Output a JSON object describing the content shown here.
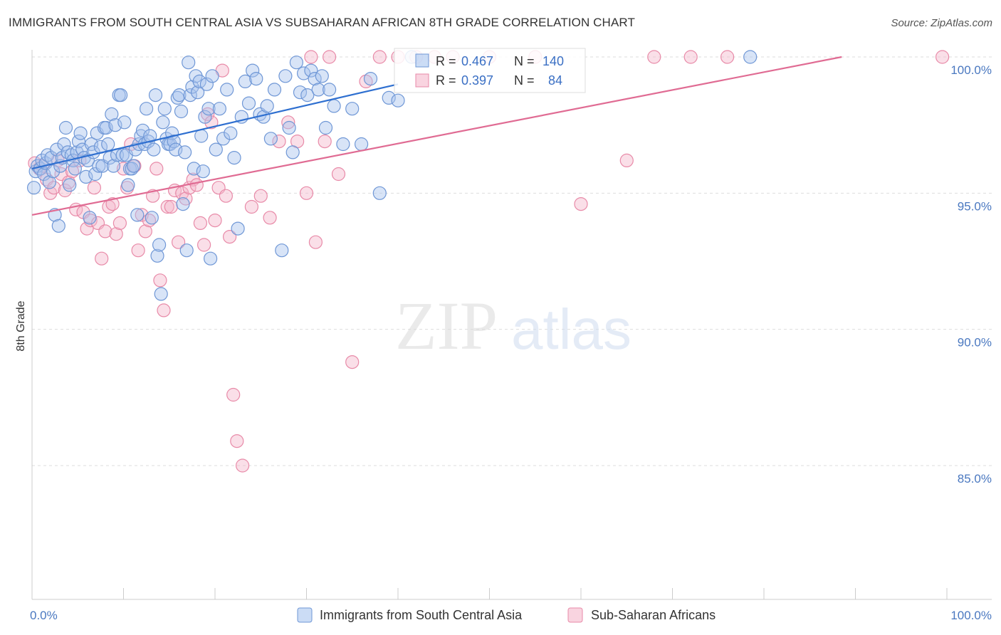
{
  "header": {
    "title": "IMMIGRANTS FROM SOUTH CENTRAL ASIA VS SUBSAHARAN AFRICAN 8TH GRADE CORRELATION CHART",
    "source": "Source: ZipAtlas.com"
  },
  "watermark": {
    "zip": "ZIP",
    "atlas": "atlas"
  },
  "colors": {
    "blue_fill": "#a9c4ee",
    "blue_stroke": "#6f97d6",
    "blue_line": "#2e6fd0",
    "pink_fill": "#f5b8cb",
    "pink_stroke": "#e88aa8",
    "pink_line": "#e06b93",
    "grid": "#dddddd",
    "tick_text": "#4a78c0"
  },
  "legend": {
    "rows": [
      {
        "r_label": "R =",
        "r_value": "0.467",
        "n_label": "N =",
        "n_value": "140"
      },
      {
        "r_label": "R =",
        "r_value": "0.397",
        "n_label": "N =",
        "n_value": "84"
      }
    ]
  },
  "chart_data": {
    "type": "scatter",
    "title": "IMMIGRANTS FROM SOUTH CENTRAL ASIA VS SUBSAHARAN AFRICAN 8TH GRADE CORRELATION CHART",
    "xlabel": "",
    "ylabel": "8th Grade",
    "xlim": [
      0,
      100
    ],
    "ylim": [
      80.5,
      100.5
    ],
    "x_tick_labels": [
      "0.0%",
      "100.0%"
    ],
    "y_ticks": [
      100,
      95,
      90,
      85
    ],
    "y_tick_labels": [
      "100.0%",
      "95.0%",
      "90.0%",
      "85.0%"
    ],
    "grid": "horizontal dashed",
    "legend_position": "top-center",
    "series": [
      {
        "name": "Immigrants from South Central Asia",
        "R": 0.467,
        "N": 140,
        "trend": {
          "x": [
            0,
            40
          ],
          "y": [
            95.9,
            99.0
          ]
        },
        "points": [
          [
            0.2,
            95.2
          ],
          [
            0.4,
            95.8
          ],
          [
            0.6,
            96.0
          ],
          [
            0.9,
            95.9
          ],
          [
            1.1,
            96.2
          ],
          [
            1.3,
            95.7
          ],
          [
            1.5,
            96.1
          ],
          [
            1.7,
            96.4
          ],
          [
            1.9,
            95.4
          ],
          [
            2.1,
            96.3
          ],
          [
            2.3,
            95.8
          ],
          [
            2.5,
            94.2
          ],
          [
            2.7,
            96.6
          ],
          [
            2.9,
            93.8
          ],
          [
            3.1,
            96.0
          ],
          [
            3.3,
            96.3
          ],
          [
            3.5,
            96.8
          ],
          [
            3.7,
            97.4
          ],
          [
            3.9,
            96.5
          ],
          [
            4.1,
            95.3
          ],
          [
            4.3,
            96.4
          ],
          [
            4.5,
            96.2
          ],
          [
            4.7,
            95.9
          ],
          [
            4.9,
            96.5
          ],
          [
            5.1,
            96.9
          ],
          [
            5.3,
            97.2
          ],
          [
            5.5,
            96.6
          ],
          [
            5.7,
            96.3
          ],
          [
            5.9,
            95.6
          ],
          [
            6.1,
            96.2
          ],
          [
            6.3,
            94.1
          ],
          [
            6.5,
            96.8
          ],
          [
            6.7,
            96.5
          ],
          [
            6.9,
            95.7
          ],
          [
            7.1,
            97.2
          ],
          [
            7.3,
            96.0
          ],
          [
            7.5,
            96.7
          ],
          [
            7.7,
            96.0
          ],
          [
            7.9,
            97.4
          ],
          [
            8.1,
            97.4
          ],
          [
            8.3,
            96.8
          ],
          [
            8.5,
            96.3
          ],
          [
            8.7,
            97.9
          ],
          [
            8.9,
            96.0
          ],
          [
            9.1,
            97.5
          ],
          [
            9.3,
            96.4
          ],
          [
            9.5,
            98.6
          ],
          [
            9.7,
            98.6
          ],
          [
            9.9,
            96.4
          ],
          [
            10.1,
            97.6
          ],
          [
            10.3,
            96.4
          ],
          [
            10.5,
            95.3
          ],
          [
            10.7,
            95.9
          ],
          [
            10.9,
            95.9
          ],
          [
            11.1,
            96.0
          ],
          [
            11.3,
            96.6
          ],
          [
            11.5,
            94.2
          ],
          [
            11.7,
            96.8
          ],
          [
            11.9,
            97.1
          ],
          [
            12.1,
            97.3
          ],
          [
            12.3,
            96.8
          ],
          [
            12.5,
            98.1
          ],
          [
            12.7,
            96.9
          ],
          [
            12.9,
            97.1
          ],
          [
            13.1,
            94.1
          ],
          [
            13.3,
            96.6
          ],
          [
            13.5,
            98.6
          ],
          [
            13.7,
            92.7
          ],
          [
            13.9,
            93.1
          ],
          [
            14.1,
            91.3
          ],
          [
            14.3,
            97.6
          ],
          [
            14.5,
            98.1
          ],
          [
            14.7,
            97.0
          ],
          [
            14.9,
            96.8
          ],
          [
            15.1,
            96.8
          ],
          [
            15.3,
            97.2
          ],
          [
            15.5,
            96.9
          ],
          [
            15.7,
            96.6
          ],
          [
            15.9,
            98.5
          ],
          [
            16.1,
            98.6
          ],
          [
            16.3,
            98.0
          ],
          [
            16.5,
            94.6
          ],
          [
            16.7,
            96.5
          ],
          [
            16.9,
            92.9
          ],
          [
            17.1,
            99.8
          ],
          [
            17.3,
            98.6
          ],
          [
            17.5,
            98.9
          ],
          [
            17.7,
            95.9
          ],
          [
            17.9,
            99.3
          ],
          [
            18.1,
            98.7
          ],
          [
            18.3,
            99.1
          ],
          [
            18.5,
            97.1
          ],
          [
            18.7,
            95.8
          ],
          [
            18.9,
            97.8
          ],
          [
            19.1,
            99.0
          ],
          [
            19.3,
            98.1
          ],
          [
            19.5,
            92.6
          ],
          [
            19.7,
            99.3
          ],
          [
            20.1,
            96.6
          ],
          [
            20.5,
            98.1
          ],
          [
            20.9,
            97.0
          ],
          [
            21.3,
            98.8
          ],
          [
            21.7,
            97.2
          ],
          [
            22.1,
            96.3
          ],
          [
            22.5,
            93.7
          ],
          [
            22.9,
            97.8
          ],
          [
            23.3,
            99.1
          ],
          [
            23.7,
            98.3
          ],
          [
            24.1,
            99.5
          ],
          [
            24.5,
            99.2
          ],
          [
            24.9,
            97.9
          ],
          [
            25.3,
            97.8
          ],
          [
            25.7,
            98.2
          ],
          [
            26.1,
            97.0
          ],
          [
            26.5,
            98.8
          ],
          [
            27.3,
            92.9
          ],
          [
            27.7,
            99.3
          ],
          [
            28.1,
            97.4
          ],
          [
            28.5,
            96.5
          ],
          [
            28.9,
            99.8
          ],
          [
            29.3,
            98.7
          ],
          [
            29.7,
            99.4
          ],
          [
            30.1,
            98.6
          ],
          [
            30.5,
            99.5
          ],
          [
            30.9,
            99.2
          ],
          [
            31.3,
            98.8
          ],
          [
            31.7,
            99.3
          ],
          [
            32.1,
            97.4
          ],
          [
            32.5,
            98.8
          ],
          [
            33.0,
            98.2
          ],
          [
            34.0,
            96.8
          ],
          [
            35.0,
            98.1
          ],
          [
            36.0,
            96.8
          ],
          [
            37.0,
            99.2
          ],
          [
            38.0,
            95.0
          ],
          [
            39.0,
            98.5
          ],
          [
            40.0,
            98.4
          ],
          [
            78.5,
            100.0
          ],
          [
            41.5,
            100.0
          ]
        ]
      },
      {
        "name": "Sub-Saharan Africans",
        "R": 0.397,
        "N": 84,
        "trend": {
          "x": [
            0,
            88.5
          ],
          "y": [
            94.2,
            100.0
          ]
        },
        "points": [
          [
            0.3,
            96.1
          ],
          [
            0.8,
            95.9
          ],
          [
            1.2,
            96.0
          ],
          [
            1.6,
            95.5
          ],
          [
            2.0,
            95.0
          ],
          [
            2.4,
            95.2
          ],
          [
            2.8,
            96.2
          ],
          [
            3.2,
            95.7
          ],
          [
            3.6,
            95.1
          ],
          [
            4.0,
            95.4
          ],
          [
            4.4,
            95.8
          ],
          [
            4.8,
            94.4
          ],
          [
            5.2,
            96.2
          ],
          [
            5.6,
            94.3
          ],
          [
            6.0,
            93.7
          ],
          [
            6.4,
            94.0
          ],
          [
            6.8,
            95.2
          ],
          [
            7.2,
            93.9
          ],
          [
            7.6,
            92.6
          ],
          [
            8.0,
            93.6
          ],
          [
            8.4,
            94.5
          ],
          [
            8.8,
            94.6
          ],
          [
            9.2,
            93.5
          ],
          [
            9.6,
            93.9
          ],
          [
            10.0,
            95.9
          ],
          [
            10.4,
            95.2
          ],
          [
            10.8,
            96.8
          ],
          [
            11.2,
            96.0
          ],
          [
            11.6,
            92.9
          ],
          [
            12.0,
            94.2
          ],
          [
            12.4,
            93.6
          ],
          [
            12.8,
            94.0
          ],
          [
            13.2,
            94.9
          ],
          [
            13.6,
            95.9
          ],
          [
            14.0,
            91.8
          ],
          [
            14.4,
            90.7
          ],
          [
            14.8,
            94.5
          ],
          [
            15.2,
            94.5
          ],
          [
            15.6,
            95.1
          ],
          [
            16.0,
            93.2
          ],
          [
            16.4,
            95.0
          ],
          [
            16.8,
            94.8
          ],
          [
            17.2,
            95.2
          ],
          [
            17.6,
            95.5
          ],
          [
            18.0,
            95.3
          ],
          [
            18.4,
            93.9
          ],
          [
            18.8,
            93.1
          ],
          [
            19.2,
            97.9
          ],
          [
            19.6,
            97.6
          ],
          [
            20.0,
            94.0
          ],
          [
            20.4,
            95.2
          ],
          [
            20.8,
            99.5
          ],
          [
            21.2,
            94.9
          ],
          [
            21.6,
            93.4
          ],
          [
            22.0,
            87.6
          ],
          [
            22.4,
            85.9
          ],
          [
            23.0,
            85.0
          ],
          [
            24.0,
            94.5
          ],
          [
            25.0,
            94.9
          ],
          [
            26.0,
            94.1
          ],
          [
            27.0,
            96.9
          ],
          [
            28.0,
            97.6
          ],
          [
            29.0,
            96.9
          ],
          [
            30.0,
            95.0
          ],
          [
            31.0,
            93.2
          ],
          [
            32.0,
            96.9
          ],
          [
            33.5,
            95.7
          ],
          [
            35.0,
            88.8
          ],
          [
            36.5,
            99.1
          ],
          [
            38.0,
            100.0
          ],
          [
            40.0,
            100.0
          ],
          [
            42.0,
            100.0
          ],
          [
            44.0,
            100.0
          ],
          [
            46.0,
            100.0
          ],
          [
            50.0,
            100.0
          ],
          [
            55.0,
            100.0
          ],
          [
            60.0,
            94.6
          ],
          [
            65.0,
            96.2
          ],
          [
            68.0,
            100.0
          ],
          [
            72.0,
            100.0
          ],
          [
            76.0,
            100.0
          ],
          [
            99.5,
            100.0
          ],
          [
            30.5,
            100.0
          ],
          [
            32.5,
            100.0
          ]
        ]
      }
    ]
  }
}
